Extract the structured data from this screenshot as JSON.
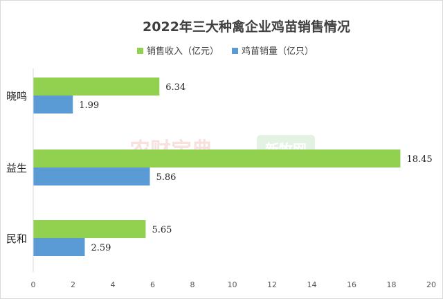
{
  "chart_data": {
    "type": "bar",
    "orientation": "horizontal",
    "title": "2022年三大种禽企业鸡苗销售情况",
    "categories": [
      "晓鸣",
      "益生",
      "民和"
    ],
    "series": [
      {
        "name": "销售收入（亿元）",
        "color": "#92d050",
        "values": [
          6.34,
          18.45,
          5.65
        ]
      },
      {
        "name": "鸡苗销量（亿只）",
        "color": "#5b9bd5",
        "values": [
          1.99,
          5.86,
          2.59
        ]
      }
    ],
    "xlim": [
      0,
      20
    ],
    "xticks": [
      0,
      2,
      4,
      6,
      8,
      10,
      12,
      14,
      16,
      18,
      20
    ],
    "legend_position": "top",
    "grid": false
  },
  "watermarks": {
    "left": "农财宝典",
    "right": "新牧网"
  }
}
